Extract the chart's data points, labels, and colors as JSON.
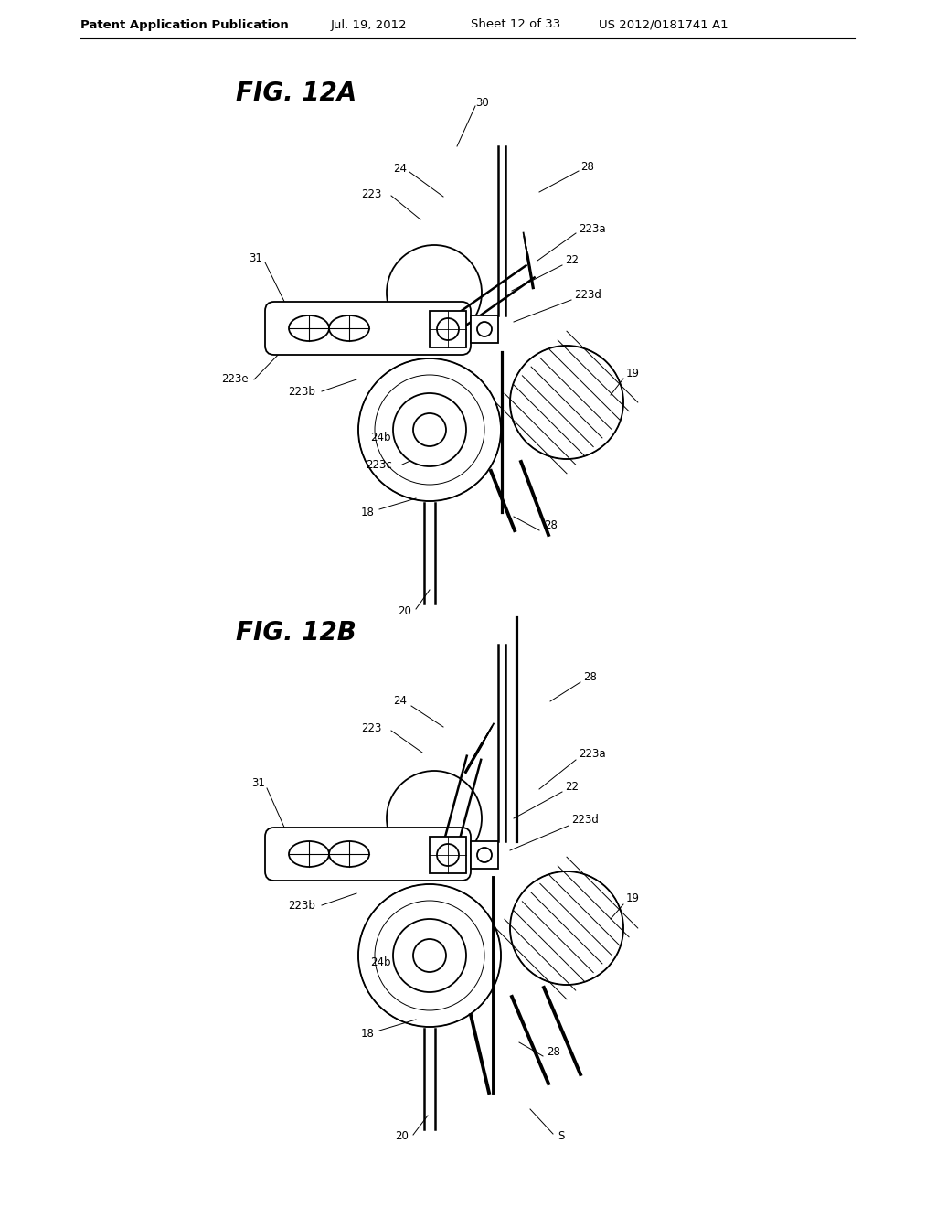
{
  "background_color": "#ffffff",
  "header_text": "Patent Application Publication",
  "header_date": "Jul. 19, 2012",
  "header_sheet": "Sheet 12 of 33",
  "header_patent": "US 2012/0181741 A1",
  "fig_12a_title": "FIG. 12A",
  "fig_12b_title": "FIG. 12B",
  "line_color": "#000000",
  "line_width": 1.3,
  "label_fontsize": 8.5,
  "title_fontsize": 20,
  "header_fontsize": 9.5
}
